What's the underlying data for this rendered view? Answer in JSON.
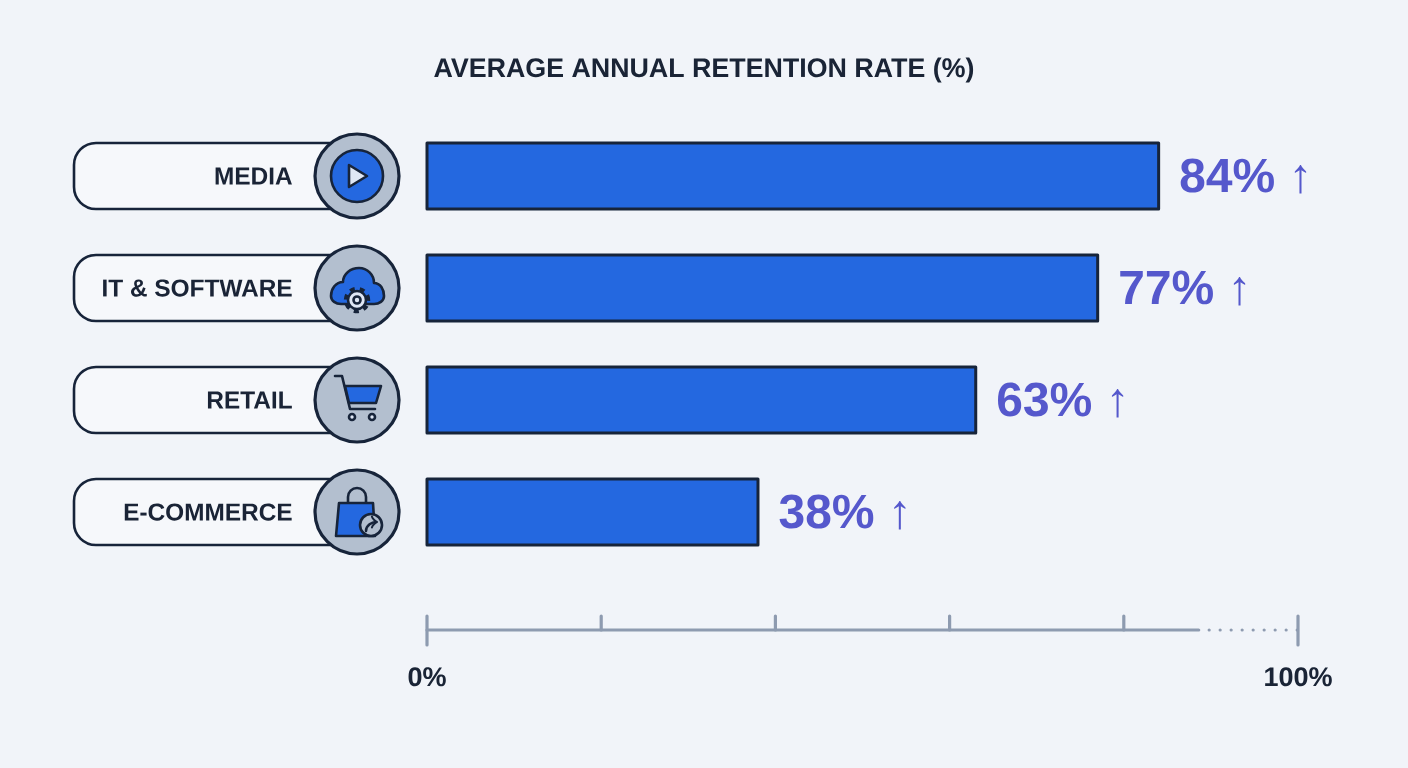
{
  "chart_data": {
    "type": "bar",
    "orientation": "horizontal",
    "title": "AVERAGE ANNUAL RETENTION RATE (%)",
    "categories": [
      "MEDIA",
      "IT & SOFTWARE",
      "RETAIL",
      "E-COMMERCE"
    ],
    "values": [
      84,
      77,
      63,
      38
    ],
    "color": "#2468e0",
    "value_labels": [
      "84% ↑",
      "77% ↑",
      "63% ↑",
      "38% ↑"
    ],
    "xlim": [
      0,
      100
    ],
    "xticks": [
      {
        "value": 0,
        "label": "0%"
      },
      {
        "value": 20,
        "label": null
      },
      {
        "value": 40,
        "label": null
      },
      {
        "value": 60,
        "label": null
      },
      {
        "value": 80,
        "label": null
      },
      {
        "value": 100,
        "label": "100%"
      }
    ]
  }
}
